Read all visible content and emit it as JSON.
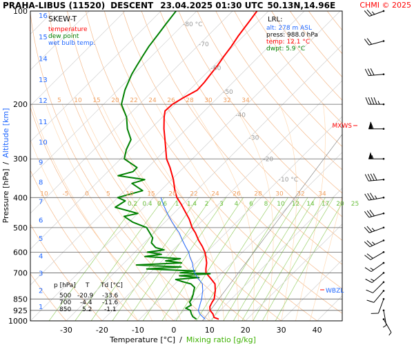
{
  "header": {
    "station": "PRAHA-LIBUS (11520)",
    "mode": "DESCENT",
    "datetime": "23.04.2025 01:30 UTC",
    "coords": "50.13N,14.96E",
    "copyright": "CHMI © 2025"
  },
  "legend": {
    "title": "SKEW-T",
    "items": [
      {
        "label": "temperature",
        "color": "#ff0000"
      },
      {
        "label": "dew point",
        "color": "#008000"
      },
      {
        "label": "wet bulb temp.",
        "color": "#1e66ff"
      }
    ]
  },
  "lrl": {
    "title": "LRL:",
    "alt": "alt: 278 m ASL",
    "press": "press: 988.0 hPa",
    "temp": "temp: 12.1 °C",
    "dwpt": "dwpt: 5.9 °C"
  },
  "levels_table": {
    "header": [
      "p [hPa]",
      "T",
      "Td [°C]"
    ],
    "rows": [
      [
        "500",
        "-20.9",
        "-33.6"
      ],
      [
        "700",
        "-4.4",
        "-11.6"
      ],
      [
        "850",
        "5.2",
        "-1.1"
      ]
    ]
  },
  "markers": {
    "mxws": "MXWS",
    "wbzl": "WBZL"
  },
  "chart_data": {
    "type": "line",
    "title": "PRAHA-LIBUS (11520) DESCENT 23.04.2025 01:30 UTC 50.13N,14.96E",
    "xlabel_left": "Temperature [°C]",
    "xlabel_sep": "/",
    "xlabel_right": "Mixing ratio [g/kg]",
    "ylabel_left": "Pressure [hPa]",
    "ylabel_sep": "/",
    "ylabel_right": "Altitude [km]",
    "x_ticks": [
      "-30",
      "-20",
      "-10",
      "0",
      "10",
      "20",
      "30",
      "40"
    ],
    "y_ticks": [
      "100",
      "200",
      "300",
      "400",
      "500",
      "600",
      "700",
      "850",
      "925",
      "1000"
    ],
    "altitude_ticks": [
      "1",
      "2",
      "3",
      "4",
      "5",
      "6",
      "7",
      "8",
      "9",
      "10",
      "11",
      "12",
      "13",
      "14",
      "15",
      "16"
    ],
    "isotherm_labels": [
      "-80 °C",
      "-70",
      "-60",
      "-50",
      "-40",
      "-30",
      "-20",
      "-10 °C"
    ],
    "theta_labels_200": [
      "5",
      "10",
      "15",
      "20",
      "22",
      "24",
      "26",
      "28",
      "30",
      "32",
      "34"
    ],
    "theta_labels_400": [
      "10",
      "-5",
      "0",
      "5",
      "10",
      "15",
      "20",
      "22",
      "24",
      "26",
      "28",
      "30",
      "32",
      "34"
    ],
    "mixing_ratio_labels": [
      "0.2",
      "0.4",
      "0.6",
      "1",
      "1.4",
      "2",
      "3",
      "4",
      "6",
      "8",
      "10",
      "12",
      "14",
      "17",
      "20",
      "25"
    ],
    "xlim": [
      -40,
      47
    ],
    "ylim": [
      1000,
      100
    ],
    "skew_deg": 45,
    "series": [
      {
        "name": "temperature",
        "color": "#ff0000",
        "points": [
          [
            988,
            12.1
          ],
          [
            975,
            10.3
          ],
          [
            950,
            9.0
          ],
          [
            925,
            7.2
          ],
          [
            900,
            6.1
          ],
          [
            870,
            5.5
          ],
          [
            850,
            5.2
          ],
          [
            820,
            4.0
          ],
          [
            800,
            3.2
          ],
          [
            760,
            1.2
          ],
          [
            730,
            -1.5
          ],
          [
            700,
            -4.4
          ],
          [
            680,
            -5.5
          ],
          [
            650,
            -7.0
          ],
          [
            620,
            -9.0
          ],
          [
            600,
            -10.5
          ],
          [
            575,
            -12.8
          ],
          [
            550,
            -15.5
          ],
          [
            520,
            -18.5
          ],
          [
            500,
            -20.9
          ],
          [
            470,
            -24.0
          ],
          [
            450,
            -26.5
          ],
          [
            420,
            -30.5
          ],
          [
            400,
            -33.5
          ],
          [
            380,
            -36.0
          ],
          [
            350,
            -39.5
          ],
          [
            320,
            -43.8
          ],
          [
            300,
            -47.2
          ],
          [
            280,
            -50.0
          ],
          [
            260,
            -53.0
          ],
          [
            240,
            -56.3
          ],
          [
            220,
            -59.5
          ],
          [
            210,
            -61.0
          ],
          [
            200,
            -60.8
          ],
          [
            190,
            -59.5
          ],
          [
            180,
            -57.8
          ],
          [
            170,
            -58.0
          ],
          [
            160,
            -58.5
          ],
          [
            150,
            -59.0
          ],
          [
            140,
            -59.8
          ],
          [
            130,
            -60.5
          ],
          [
            120,
            -61.5
          ],
          [
            110,
            -62.3
          ],
          [
            100,
            -63.2
          ]
        ]
      },
      {
        "name": "dew point",
        "color": "#008000",
        "points": [
          [
            988,
            5.9
          ],
          [
            970,
            4.2
          ],
          [
            950,
            3.0
          ],
          [
            925,
            1.7
          ],
          [
            910,
            -0.2
          ],
          [
            890,
            0.5
          ],
          [
            870,
            -0.8
          ],
          [
            850,
            -1.1
          ],
          [
            820,
            -2.0
          ],
          [
            800,
            -2.8
          ],
          [
            780,
            -3.5
          ],
          [
            760,
            -5.5
          ],
          [
            745,
            -9.0
          ],
          [
            735,
            -11.0
          ],
          [
            725,
            -5.0
          ],
          [
            715,
            -11.0
          ],
          [
            705,
            -3.0
          ],
          [
            700,
            -11.6
          ],
          [
            690,
            -8.0
          ],
          [
            680,
            -22.0
          ],
          [
            670,
            -13.0
          ],
          [
            660,
            -26.0
          ],
          [
            650,
            -14.0
          ],
          [
            640,
            -19.0
          ],
          [
            630,
            -15.5
          ],
          [
            620,
            -26.0
          ],
          [
            610,
            -22.0
          ],
          [
            600,
            -26.5
          ],
          [
            590,
            -22.5
          ],
          [
            580,
            -25.5
          ],
          [
            560,
            -28.0
          ],
          [
            540,
            -29.0
          ],
          [
            500,
            -33.6
          ],
          [
            480,
            -39.0
          ],
          [
            460,
            -43.0
          ],
          [
            450,
            -40.0
          ],
          [
            430,
            -48.0
          ],
          [
            410,
            -47.0
          ],
          [
            400,
            -50.0
          ],
          [
            380,
            -45.0
          ],
          [
            360,
            -50.0
          ],
          [
            350,
            -47.5
          ],
          [
            340,
            -56.0
          ],
          [
            330,
            -53.0
          ],
          [
            320,
            -53.0
          ],
          [
            300,
            -59.0
          ],
          [
            280,
            -61.0
          ],
          [
            260,
            -62.5
          ],
          [
            240,
            -66.5
          ],
          [
            220,
            -70.0
          ],
          [
            200,
            -75.0
          ],
          [
            180,
            -78.0
          ],
          [
            160,
            -80.5
          ],
          [
            150,
            -81.5
          ],
          [
            140,
            -82.5
          ],
          [
            130,
            -83.5
          ],
          [
            120,
            -84.2
          ],
          [
            110,
            -85.0
          ],
          [
            100,
            -85.8
          ]
        ]
      },
      {
        "name": "wet bulb temp.",
        "color": "#1e66ff",
        "points": [
          [
            988,
            8.3
          ],
          [
            950,
            5.3
          ],
          [
            925,
            3.9
          ],
          [
            900,
            3.2
          ],
          [
            870,
            2.3
          ],
          [
            850,
            1.7
          ],
          [
            820,
            0.5
          ],
          [
            800,
            -0.3
          ],
          [
            760,
            -2.3
          ],
          [
            730,
            -5.0
          ],
          [
            700,
            -7.6
          ],
          [
            680,
            -9.0
          ],
          [
            650,
            -11.0
          ],
          [
            620,
            -13.5
          ],
          [
            600,
            -15.0
          ],
          [
            575,
            -17.5
          ],
          [
            550,
            -20.0
          ],
          [
            520,
            -23.0
          ],
          [
            500,
            -25.5
          ],
          [
            480,
            -28.0
          ],
          [
            460,
            -30.5
          ],
          [
            440,
            -33.0
          ],
          [
            420,
            -35.5
          ],
          [
            400,
            -38.0
          ]
        ]
      }
    ],
    "wind_barbs": [
      {
        "p": 100,
        "dir": 250,
        "spd": 25
      },
      {
        "p": 125,
        "dir": 255,
        "spd": 20
      },
      {
        "p": 160,
        "dir": 265,
        "spd": 30
      },
      {
        "p": 200,
        "dir": 270,
        "spd": 45
      },
      {
        "p": 240,
        "dir": 270,
        "spd": 60
      },
      {
        "p": 300,
        "dir": 270,
        "spd": 55
      },
      {
        "p": 350,
        "dir": 265,
        "spd": 40
      },
      {
        "p": 400,
        "dir": 260,
        "spd": 35
      },
      {
        "p": 450,
        "dir": 255,
        "spd": 30
      },
      {
        "p": 500,
        "dir": 250,
        "spd": 25
      },
      {
        "p": 550,
        "dir": 245,
        "spd": 25
      },
      {
        "p": 600,
        "dir": 240,
        "spd": 20
      },
      {
        "p": 650,
        "dir": 235,
        "spd": 15
      },
      {
        "p": 700,
        "dir": 230,
        "spd": 15
      },
      {
        "p": 750,
        "dir": 225,
        "spd": 10
      },
      {
        "p": 800,
        "dir": 220,
        "spd": 10
      },
      {
        "p": 850,
        "dir": 200,
        "spd": 10
      },
      {
        "p": 925,
        "dir": 170,
        "spd": 5
      },
      {
        "p": 988,
        "dir": 150,
        "spd": 5
      }
    ]
  }
}
